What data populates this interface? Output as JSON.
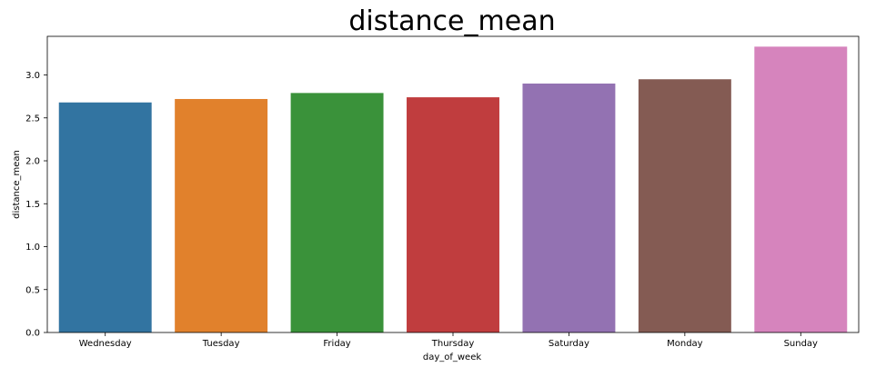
{
  "chart_data": {
    "type": "bar",
    "title": "distance_mean",
    "xlabel": "day_of_week",
    "ylabel": "distance_mean",
    "categories": [
      "Wednesday",
      "Tuesday",
      "Friday",
      "Thursday",
      "Saturday",
      "Monday",
      "Sunday"
    ],
    "values": [
      2.68,
      2.72,
      2.79,
      2.74,
      2.9,
      2.95,
      3.33
    ],
    "colors": [
      "#3274a1",
      "#e1812c",
      "#3a923a",
      "#c03d3e",
      "#9372b2",
      "#845b53",
      "#d684bd"
    ],
    "ylim": [
      0,
      3.45
    ],
    "yticks": [
      "0.0",
      "0.5",
      "1.0",
      "1.5",
      "2.0",
      "2.5",
      "3.0"
    ],
    "grid": false,
    "legend": false
  }
}
